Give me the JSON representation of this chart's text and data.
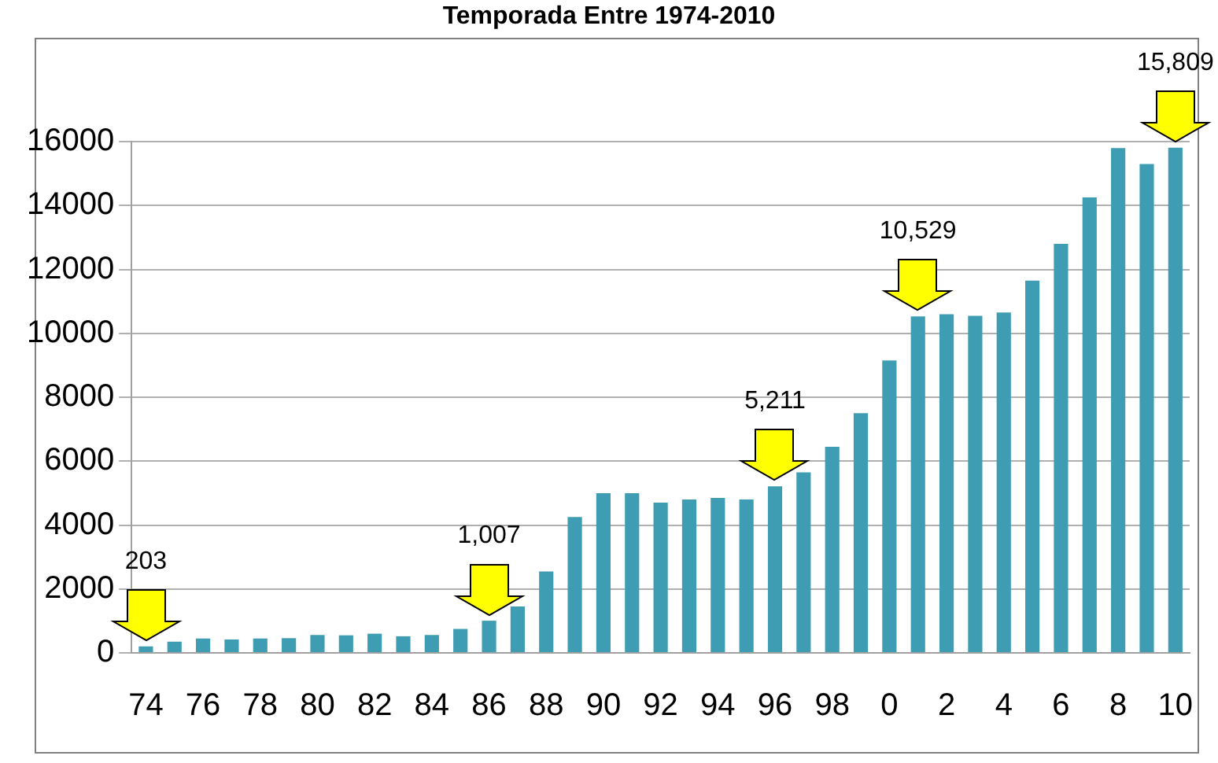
{
  "chart_data": {
    "type": "bar",
    "title": "Temporada Entre 1974-2010",
    "categories": [
      "74",
      null,
      "76",
      null,
      "78",
      null,
      "80",
      null,
      "82",
      null,
      "84",
      null,
      "86",
      null,
      "88",
      null,
      "90",
      null,
      "92",
      null,
      "94",
      null,
      "96",
      null,
      "98",
      null,
      "0",
      null,
      "2",
      null,
      "4",
      null,
      "6",
      null,
      "8",
      null,
      "10"
    ],
    "values": [
      203,
      350,
      450,
      420,
      450,
      460,
      560,
      550,
      600,
      520,
      560,
      750,
      1007,
      1450,
      2550,
      4250,
      5000,
      5000,
      4700,
      4800,
      4850,
      4800,
      5211,
      5650,
      6450,
      7500,
      9150,
      10529,
      10600,
      10550,
      10650,
      11650,
      12800,
      14250,
      15800,
      15300,
      15809
    ],
    "color": "#3f9db3",
    "ylim": [
      0,
      16000
    ],
    "yticks": [
      0,
      2000,
      4000,
      6000,
      8000,
      10000,
      12000,
      14000,
      16000
    ],
    "grid": "y",
    "legend": false,
    "annotations": [
      {
        "text": "203",
        "x": "74",
        "y": 203
      },
      {
        "text": "1,007",
        "x": "86",
        "y": 1007
      },
      {
        "text": "5,211",
        "x": "96",
        "y": 5211
      },
      {
        "text": "10,529",
        "y": 10529
      },
      {
        "text": "15,809",
        "x": "10",
        "y": 15809
      }
    ]
  }
}
